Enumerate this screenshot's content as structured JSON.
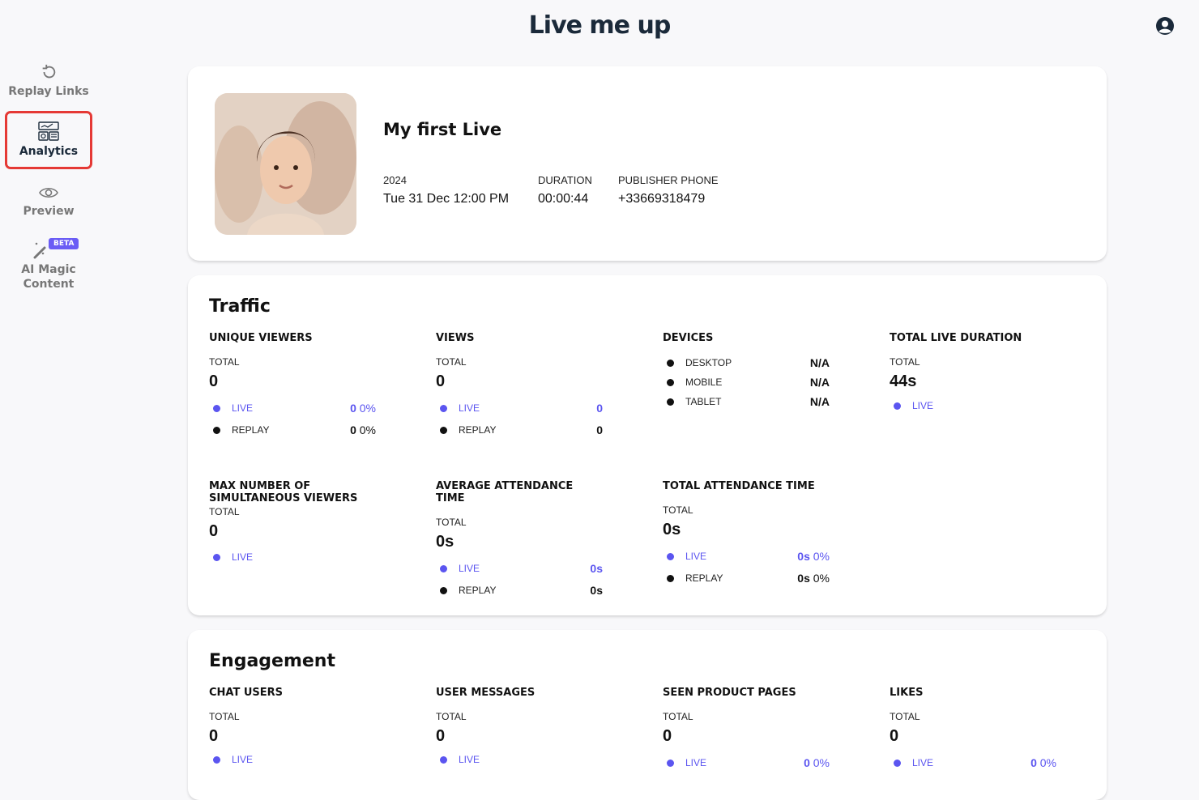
{
  "header": {
    "logo": "Live me up"
  },
  "sidebar": {
    "items": [
      {
        "label": "Replay Links",
        "icon": "replay-icon"
      },
      {
        "label": "Analytics",
        "icon": "analytics-icon",
        "active": true
      },
      {
        "label": "Preview",
        "icon": "eye-icon"
      },
      {
        "label": "AI Magic Content",
        "icon": "magic-wand-icon",
        "badge": "BETA"
      }
    ]
  },
  "live": {
    "title": "My first Live",
    "year": "2024",
    "date": "Tue 31 Dec 12:00 PM",
    "duration_label": "DURATION",
    "duration": "00:00:44",
    "phone_label": "PUBLISHER PHONE",
    "phone": "+33669318479"
  },
  "traffic": {
    "title": "Traffic",
    "unique_viewers": {
      "label": "UNIQUE VIEWERS",
      "total_label": "TOTAL",
      "total": "0",
      "live_label": "LIVE",
      "live_value": "0",
      "live_pct": "0%",
      "replay_label": "REPLAY",
      "replay_value": "0",
      "replay_pct": "0%"
    },
    "views": {
      "label": "VIEWS",
      "total_label": "TOTAL",
      "total": "0",
      "live_label": "LIVE",
      "live_value": "0",
      "replay_label": "REPLAY",
      "replay_value": "0"
    },
    "devices": {
      "label": "DEVICES",
      "desktop_label": "DESKTOP",
      "desktop": "N/A",
      "mobile_label": "MOBILE",
      "mobile": "N/A",
      "tablet_label": "TABLET",
      "tablet": "N/A"
    },
    "total_live_duration": {
      "label": "TOTAL LIVE DURATION",
      "total_label": "TOTAL",
      "total": "44s",
      "live_label": "LIVE"
    },
    "max_viewers": {
      "label_line1": "MAX NUMBER OF",
      "label_line2": "SIMULTANEOUS VIEWERS",
      "total_label": "TOTAL",
      "total": "0",
      "live_label": "LIVE"
    },
    "avg_attendance": {
      "label": "AVERAGE ATTENDANCE TIME",
      "total_label": "TOTAL",
      "total": "0s",
      "live_label": "LIVE",
      "live_value": "0s",
      "replay_label": "REPLAY",
      "replay_value": "0s"
    },
    "total_attendance": {
      "label": "TOTAL ATTENDANCE TIME",
      "total_label": "TOTAL",
      "total": "0s",
      "live_label": "LIVE",
      "live_value": "0s",
      "live_pct": "0%",
      "replay_label": "REPLAY",
      "replay_value": "0s",
      "replay_pct": "0%"
    }
  },
  "engagement": {
    "title": "Engagement",
    "chat_users": {
      "label": "CHAT USERS",
      "total_label": "TOTAL",
      "total": "0",
      "live_label": "LIVE"
    },
    "user_messages": {
      "label": "USER MESSAGES",
      "total_label": "TOTAL",
      "total": "0",
      "live_label": "LIVE"
    },
    "seen_product_pages": {
      "label": "SEEN PRODUCT PAGES",
      "total_label": "TOTAL",
      "total": "0",
      "live_label": "LIVE",
      "live_value": "0",
      "live_pct": "0%"
    },
    "likes": {
      "label": "LIKES",
      "total_label": "TOTAL",
      "total": "0",
      "live_label": "LIVE",
      "live_value": "0",
      "live_pct": "0%"
    }
  },
  "colors": {
    "accent": "#5b55f0",
    "highlight": "#e53935",
    "logo": "#1b2a3a"
  }
}
